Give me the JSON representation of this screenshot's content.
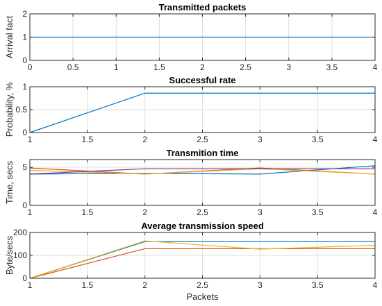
{
  "chart_data": [
    {
      "type": "line",
      "title": "Transmitted packets",
      "xlabel": "",
      "ylabel": "Arrival fact",
      "xlim": [
        0,
        4
      ],
      "ylim": [
        0,
        2
      ],
      "grid": true,
      "xticks": [
        0,
        0.5,
        1,
        1.5,
        2,
        2.5,
        3,
        3.5,
        4
      ],
      "xtick_labels": [
        "0",
        "0.5",
        "1",
        "1.5",
        "2",
        "2.5",
        "3",
        "3.5",
        "4"
      ],
      "yticks": [
        0,
        1,
        2
      ],
      "ytick_labels": [
        "0",
        "1",
        "2"
      ],
      "series": [
        {
          "color": "#0072BD",
          "x": [
            0,
            4
          ],
          "y": [
            1,
            1
          ]
        }
      ]
    },
    {
      "type": "line",
      "title": "Successful rate",
      "xlabel": "",
      "ylabel": "Probability, %",
      "xlim": [
        1,
        4
      ],
      "ylim": [
        0,
        1
      ],
      "grid": true,
      "xticks": [
        1,
        1.5,
        2,
        2.5,
        3,
        3.5,
        4
      ],
      "xtick_labels": [
        "1",
        "1.5",
        "2",
        "2.5",
        "3",
        "3.5",
        "4"
      ],
      "yticks": [
        0,
        0.5,
        1
      ],
      "ytick_labels": [
        "0",
        "0.5",
        "1"
      ],
      "series": [
        {
          "color": "#0072BD",
          "x": [
            1,
            2,
            3,
            4
          ],
          "y": [
            0,
            0.86,
            0.86,
            0.86
          ]
        }
      ]
    },
    {
      "type": "line",
      "title": "Transmition time",
      "xlabel": "",
      "ylabel": "Time, secs",
      "xlim": [
        1,
        4
      ],
      "ylim": [
        0,
        6
      ],
      "grid": true,
      "xticks": [
        1,
        1.5,
        2,
        2.5,
        3,
        3.5,
        4
      ],
      "xtick_labels": [
        "1",
        "1.5",
        "2",
        "2.5",
        "3",
        "3.5",
        "4"
      ],
      "yticks": [
        0,
        5
      ],
      "ytick_labels": [
        "0",
        "5"
      ],
      "series": [
        {
          "color": "#0072BD",
          "x": [
            1,
            2,
            3,
            4
          ],
          "y": [
            4.1,
            4.2,
            4.1,
            5.2
          ]
        },
        {
          "color": "#D95319",
          "x": [
            1,
            2,
            3,
            4
          ],
          "y": [
            4.9,
            4.1,
            4.9,
            4.1
          ]
        },
        {
          "color": "#EDB120",
          "x": [
            1,
            2,
            3,
            4
          ],
          "y": [
            4.6,
            4.1,
            4.8,
            4.1
          ]
        },
        {
          "color": "#7E2F8E",
          "x": [
            1,
            2,
            3,
            4
          ],
          "y": [
            4.1,
            4.8,
            4.8,
            4.8
          ]
        }
      ]
    },
    {
      "type": "line",
      "title": "Average transmission speed",
      "xlabel": "Packets",
      "ylabel": "Byte/secs",
      "xlim": [
        1,
        4
      ],
      "ylim": [
        0,
        200
      ],
      "grid": true,
      "xticks": [
        1,
        1.5,
        2,
        2.5,
        3,
        3.5,
        4
      ],
      "xtick_labels": [
        "1",
        "1.5",
        "2",
        "2.5",
        "3",
        "3.5",
        "4"
      ],
      "yticks": [
        0,
        100,
        200
      ],
      "ytick_labels": [
        "0",
        "100",
        "200"
      ],
      "series": [
        {
          "color": "#0072BD",
          "x": [
            1,
            2,
            3,
            4
          ],
          "y": [
            0,
            160,
            160,
            160
          ]
        },
        {
          "color": "#D95319",
          "x": [
            1,
            2,
            3,
            4
          ],
          "y": [
            0,
            129,
            129,
            129
          ]
        },
        {
          "color": "#EDB120",
          "x": [
            1,
            2,
            3,
            4
          ],
          "y": [
            0,
            163,
            127,
            144
          ]
        }
      ]
    }
  ]
}
